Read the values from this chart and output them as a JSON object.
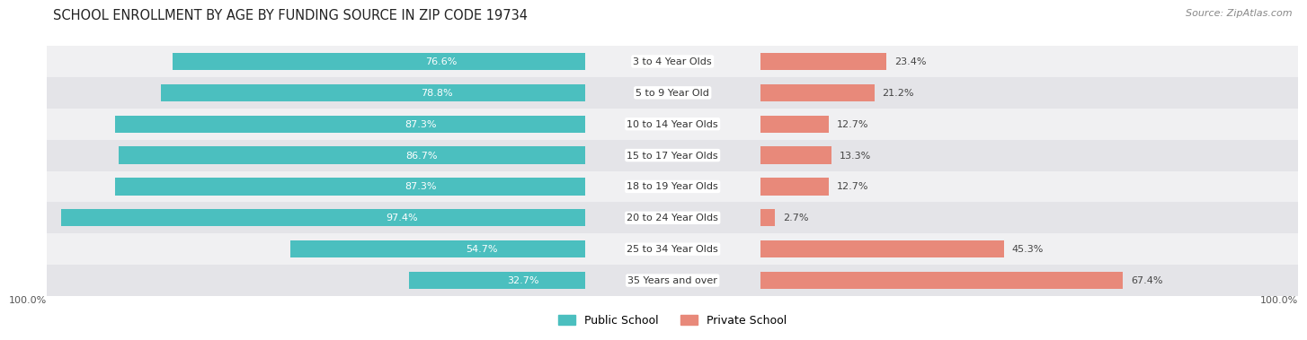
{
  "title": "SCHOOL ENROLLMENT BY AGE BY FUNDING SOURCE IN ZIP CODE 19734",
  "source": "Source: ZipAtlas.com",
  "categories": [
    "3 to 4 Year Olds",
    "5 to 9 Year Old",
    "10 to 14 Year Olds",
    "15 to 17 Year Olds",
    "18 to 19 Year Olds",
    "20 to 24 Year Olds",
    "25 to 34 Year Olds",
    "35 Years and over"
  ],
  "public_pct": [
    76.6,
    78.8,
    87.3,
    86.7,
    87.3,
    97.4,
    54.7,
    32.7
  ],
  "private_pct": [
    23.4,
    21.2,
    12.7,
    13.3,
    12.7,
    2.7,
    45.3,
    67.4
  ],
  "public_color": "#4BBFBF",
  "private_color": "#E8897A",
  "row_bg_even": "#F0F0F2",
  "row_bg_odd": "#E4E4E8",
  "axis_label_left": "100.0%",
  "axis_label_right": "100.0%",
  "title_fontsize": 10.5,
  "source_fontsize": 8,
  "bar_label_fontsize": 8,
  "category_label_fontsize": 8,
  "legend_fontsize": 9
}
